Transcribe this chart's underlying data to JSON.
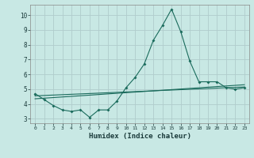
{
  "title": "",
  "xlabel": "Humidex (Indice chaleur)",
  "xlim": [
    -0.5,
    23.5
  ],
  "ylim": [
    2.7,
    10.7
  ],
  "yticks": [
    3,
    4,
    5,
    6,
    7,
    8,
    9,
    10
  ],
  "xticks": [
    0,
    1,
    2,
    3,
    4,
    5,
    6,
    7,
    8,
    9,
    10,
    11,
    12,
    13,
    14,
    15,
    16,
    17,
    18,
    19,
    20,
    21,
    22,
    23
  ],
  "background_color": "#c8e8e4",
  "grid_color": "#b0cccc",
  "line_color": "#1a6b5c",
  "series1_x": [
    0,
    1,
    2,
    3,
    4,
    5,
    6,
    7,
    8,
    9,
    10,
    11,
    12,
    13,
    14,
    15,
    16,
    17,
    18,
    19,
    20,
    21,
    22,
    23
  ],
  "series1_y": [
    4.7,
    4.3,
    3.9,
    3.6,
    3.5,
    3.6,
    3.1,
    3.6,
    3.6,
    4.2,
    5.1,
    5.8,
    6.7,
    8.3,
    9.3,
    10.4,
    8.9,
    6.9,
    5.5,
    5.5,
    5.5,
    5.1,
    5.0,
    5.1
  ],
  "series2_x": [
    0,
    23
  ],
  "series2_y": [
    4.55,
    5.15
  ],
  "series3_x": [
    0,
    23
  ],
  "series3_y": [
    4.35,
    5.3
  ]
}
